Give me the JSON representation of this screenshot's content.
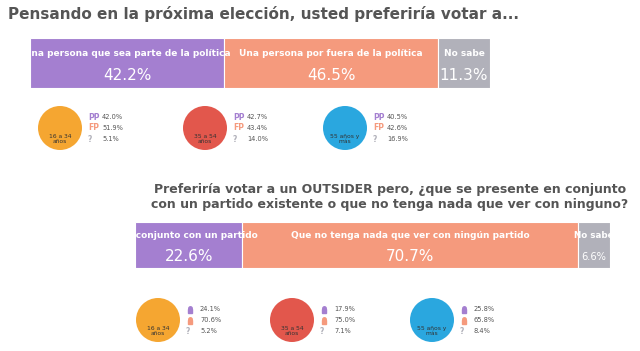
{
  "chart_data": [
    {
      "type": "bar",
      "orientation": "horizontal",
      "stacked": true,
      "data_labels": true,
      "tick_labels": false,
      "title": "Pensando en la próxima elección, usted preferiría votar a...",
      "xlim": [
        0,
        100
      ],
      "xticks": [],
      "series": [
        {
          "name": "Una persona que sea parte de la política",
          "color": "#a47fd0",
          "values": [
            42.2
          ],
          "value_labels": [
            "42.2%"
          ]
        },
        {
          "name": "Una persona por fuera de la política",
          "color": "#f59a7d",
          "values": [
            46.5
          ],
          "value_labels": [
            "46.5%"
          ]
        },
        {
          "name": "No sabe",
          "color": "#b1b1ba",
          "values": [
            11.3
          ],
          "value_labels": [
            "11.3%"
          ]
        }
      ],
      "breakdown": [
        {
          "label": "16 a 34 años",
          "color": "#f5a631",
          "codes": [
            "PP",
            "FP",
            "?"
          ],
          "values": [
            42.0,
            51.9,
            5.1
          ],
          "value_labels": [
            "42.0%",
            "51.9%",
            "5.1%"
          ]
        },
        {
          "label": "35 a 54 años",
          "color": "#e2574c",
          "codes": [
            "PP",
            "FP",
            "?"
          ],
          "values": [
            42.7,
            43.4,
            14.0
          ],
          "value_labels": [
            "42.7%",
            "43.4%",
            "14.0%"
          ]
        },
        {
          "label": "55 años y más",
          "color": "#2aa7df",
          "codes": [
            "PP",
            "FP",
            "?"
          ],
          "values": [
            40.5,
            42.6,
            16.9
          ],
          "value_labels": [
            "40.5%",
            "42.6%",
            "16.9%"
          ]
        }
      ]
    },
    {
      "type": "bar",
      "orientation": "horizontal",
      "stacked": true,
      "data_labels": true,
      "tick_labels": false,
      "title": "Preferiría votar a un OUTSIDER pero, ¿que se presente en conjunto con un partido existente o que no tenga nada que ver con ninguno?",
      "xlim": [
        0,
        100
      ],
      "xticks": [],
      "series": [
        {
          "name": "En conjunto con un partido",
          "color": "#a47fd0",
          "values": [
            22.6
          ],
          "value_labels": [
            "22.6%"
          ]
        },
        {
          "name": "Que no tenga nada que ver con ningún partido",
          "color": "#f59a7d",
          "values": [
            70.7
          ],
          "value_labels": [
            "70.7%"
          ]
        },
        {
          "name": "No sabe",
          "color": "#b1b1ba",
          "values": [
            6.6
          ],
          "value_labels": [
            "6.6%"
          ]
        }
      ],
      "breakdown": [
        {
          "label": "16 a 34 años",
          "color": "#f5a631",
          "codes": [
            null,
            null,
            "?"
          ],
          "values": [
            24.1,
            70.6,
            5.2
          ],
          "value_labels": [
            "24.1%",
            "70.6%",
            "5.2%"
          ]
        },
        {
          "label": "35 a 54 años",
          "color": "#e2574c",
          "codes": [
            null,
            null,
            "?"
          ],
          "values": [
            17.9,
            75.0,
            7.1
          ],
          "value_labels": [
            "17.9%",
            "75.0%",
            "7.1%"
          ]
        },
        {
          "label": "55 años y más",
          "color": "#2aa7df",
          "codes": [
            null,
            null,
            "?"
          ],
          "values": [
            25.8,
            65.8,
            8.4
          ],
          "value_labels": [
            "25.8%",
            "65.8%",
            "8.4%"
          ]
        }
      ]
    }
  ]
}
